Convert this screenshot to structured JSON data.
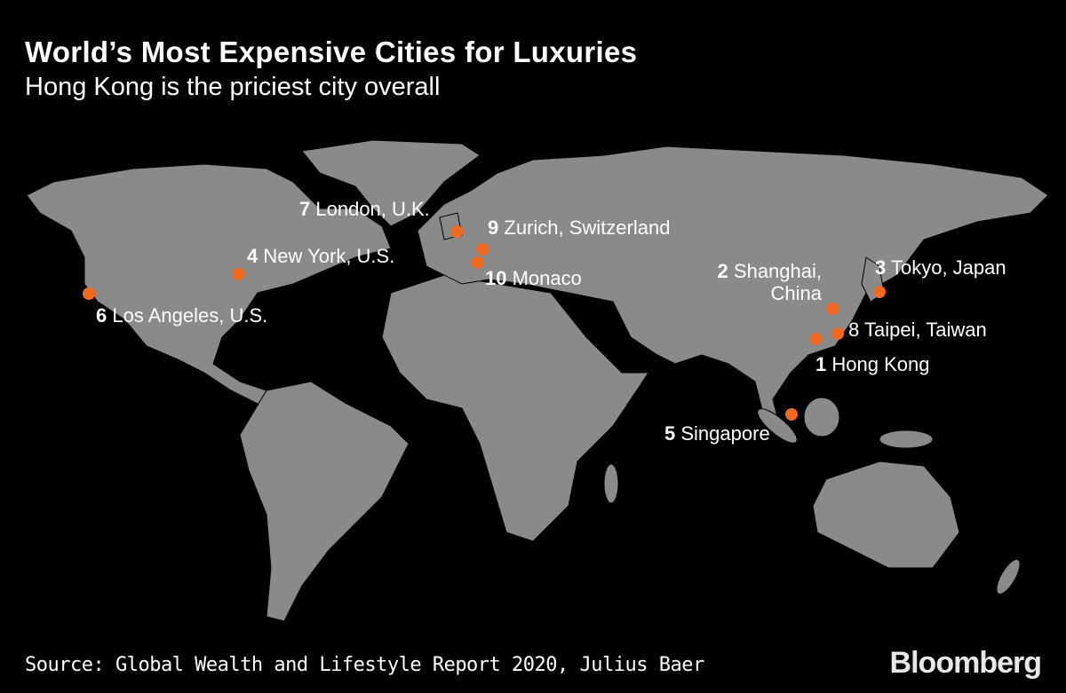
{
  "header": {
    "title": "World’s Most Expensive Cities for Luxuries",
    "subtitle": "Hong Kong is the priciest city overall"
  },
  "cities": [
    {
      "rank": 1,
      "name": "Hong Kong"
    },
    {
      "rank": 2,
      "name": "Shanghai,\nChina"
    },
    {
      "rank": 3,
      "name": "Tokyo, Japan"
    },
    {
      "rank": 4,
      "name": "New York, U.S."
    },
    {
      "rank": 5,
      "name": "Singapore"
    },
    {
      "rank": 6,
      "name": "Los Angeles, U.S."
    },
    {
      "rank": 7,
      "name": "London, U.K."
    },
    {
      "rank": 8,
      "name": "Taipei, Taiwan"
    },
    {
      "rank": 9,
      "name": "Zurich, Switzerland"
    },
    {
      "rank": 10,
      "name": "Monaco"
    }
  ],
  "footer": {
    "source": "Source: Global Wealth and Lifestyle Report 2020, Julius Baer",
    "brand": "Bloomberg"
  }
}
